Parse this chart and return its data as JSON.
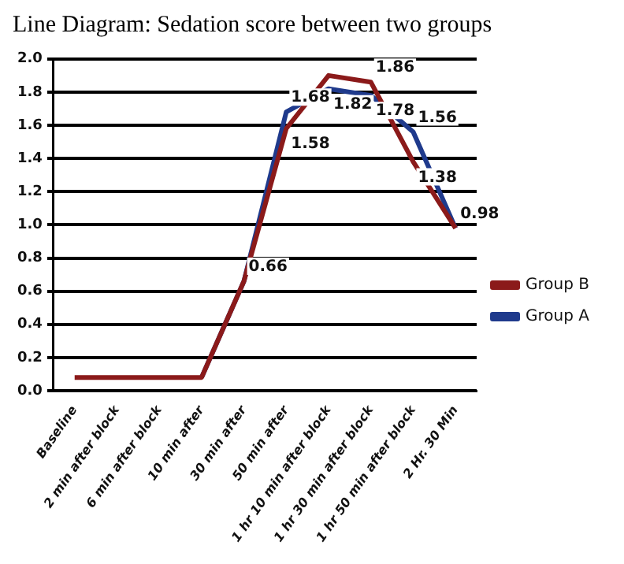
{
  "chart_data": {
    "type": "line",
    "title": "Line Diagram: Sedation score between two groups",
    "categories": [
      "Baseline",
      "2 min after block",
      "6 min after block",
      "10 min after",
      "30 min after",
      "50 min after",
      "1 hr 10 min after block",
      "1 hr 30 min after block",
      "1 hr 50 min after block",
      "2 Hr. 30 Min"
    ],
    "series": [
      {
        "name": "Group A",
        "color": "#1f3a8c",
        "values": [
          null,
          null,
          null,
          0.08,
          0.66,
          1.68,
          1.82,
          1.78,
          1.56,
          0.98
        ],
        "value_labels": [
          null,
          null,
          null,
          null,
          "0.66",
          "1.68",
          "1.82",
          "1.78",
          "1.56",
          "0.98"
        ]
      },
      {
        "name": "Group B",
        "color": "#8b1a1a",
        "values": [
          0.08,
          0.08,
          0.08,
          0.08,
          0.66,
          1.58,
          1.9,
          1.86,
          1.38,
          0.98
        ],
        "value_labels": [
          null,
          null,
          null,
          null,
          null,
          "1.58",
          null,
          "1.86",
          "1.38",
          null
        ]
      }
    ],
    "ylim": [
      0,
      2
    ],
    "yticks": [
      {
        "value": 0,
        "label": "0.0"
      },
      0.2,
      0.4,
      0.6,
      0.8,
      {
        "value": 1,
        "label": "1.0"
      },
      1.2,
      1.4,
      1.6,
      1.8,
      {
        "value": 2,
        "label": "2.0"
      }
    ],
    "grid": "y",
    "legend": "right",
    "marker": "none",
    "line_style": "solid"
  }
}
